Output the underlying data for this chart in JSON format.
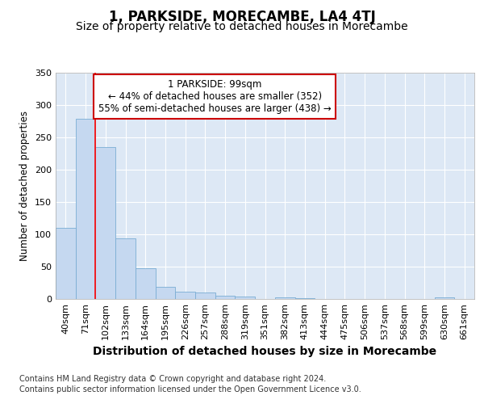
{
  "title": "1, PARKSIDE, MORECAMBE, LA4 4TJ",
  "subtitle": "Size of property relative to detached houses in Morecambe",
  "xlabel": "Distribution of detached houses by size in Morecambe",
  "ylabel": "Number of detached properties",
  "categories": [
    "40sqm",
    "71sqm",
    "102sqm",
    "133sqm",
    "164sqm",
    "195sqm",
    "226sqm",
    "257sqm",
    "288sqm",
    "319sqm",
    "351sqm",
    "382sqm",
    "413sqm",
    "444sqm",
    "475sqm",
    "506sqm",
    "537sqm",
    "568sqm",
    "599sqm",
    "630sqm",
    "661sqm"
  ],
  "values": [
    110,
    279,
    235,
    94,
    48,
    19,
    11,
    10,
    5,
    4,
    0,
    3,
    1,
    0,
    0,
    0,
    0,
    0,
    0,
    3,
    0
  ],
  "bar_color": "#c5d8f0",
  "bar_edge_color": "#7aadd4",
  "background_color": "#ffffff",
  "plot_bg_color": "#dde8f5",
  "grid_color": "#ffffff",
  "red_line_x": 2.0,
  "annotation_text": "1 PARKSIDE: 99sqm\n← 44% of detached houses are smaller (352)\n55% of semi-detached houses are larger (438) →",
  "annotation_box_color": "#ffffff",
  "annotation_box_edge": "#cc0000",
  "footer1": "Contains HM Land Registry data © Crown copyright and database right 2024.",
  "footer2": "Contains public sector information licensed under the Open Government Licence v3.0.",
  "ylim": [
    0,
    350
  ],
  "title_fontsize": 12,
  "subtitle_fontsize": 10,
  "xlabel_fontsize": 10,
  "ylabel_fontsize": 8.5,
  "tick_fontsize": 8,
  "annotation_fontsize": 8.5,
  "footer_fontsize": 7
}
